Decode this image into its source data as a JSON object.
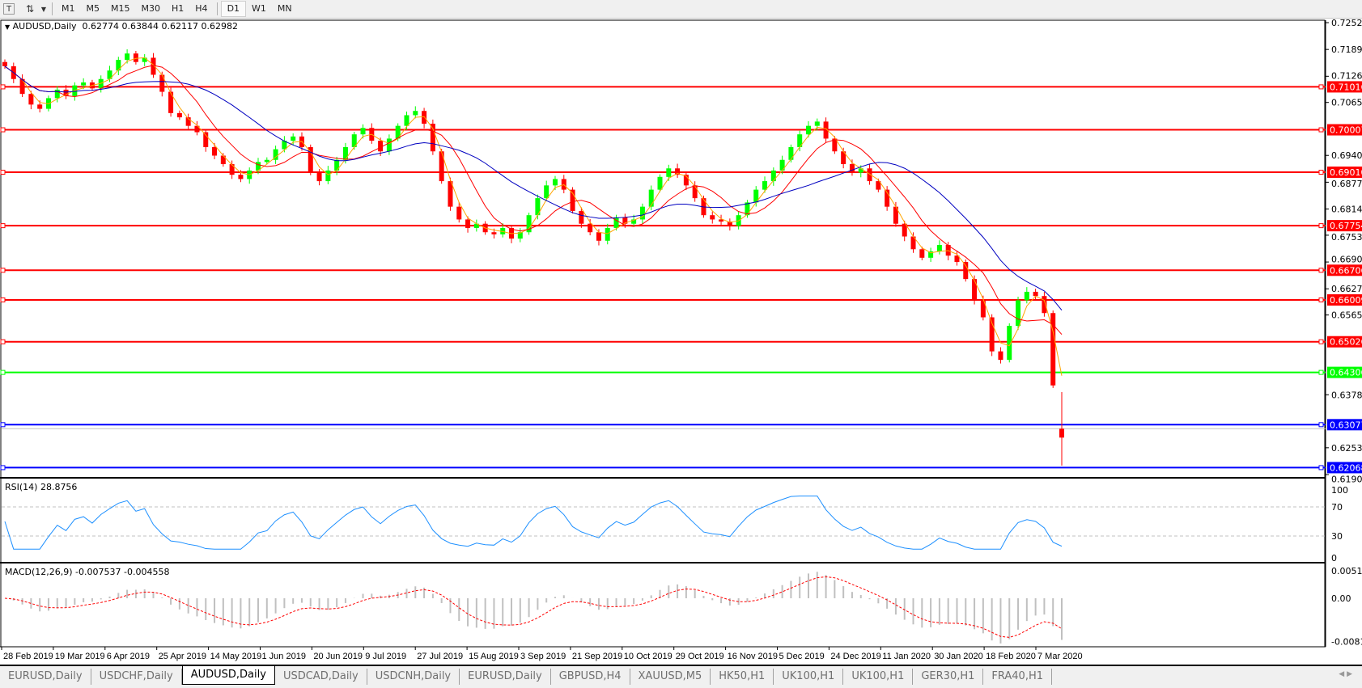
{
  "toolbar": {
    "icons": [
      "text-tool-icon",
      "line-tools-icon"
    ],
    "timeframes": [
      "M1",
      "M5",
      "M15",
      "M30",
      "H1",
      "H4",
      "D1",
      "W1",
      "MN"
    ],
    "active_timeframe": "D1"
  },
  "chart": {
    "symbol_label": "AUDUSD,Daily",
    "ohlc_text": "0.62774 0.63844 0.62117 0.62982",
    "rsi_label": "RSI(14) 28.8756",
    "macd_label": "MACD(12,26,9) -0.007537 -0.004558"
  },
  "tabs": [
    {
      "label": "EURUSD,Daily",
      "active": false
    },
    {
      "label": "USDCHF,Daily",
      "active": false
    },
    {
      "label": "AUDUSD,Daily",
      "active": true
    },
    {
      "label": "USDCAD,Daily",
      "active": false
    },
    {
      "label": "USDCNH,Daily",
      "active": false
    },
    {
      "label": "EURUSD,Daily",
      "active": false
    },
    {
      "label": "GBPUSD,H4",
      "active": false
    },
    {
      "label": "XAUUSD,M5",
      "active": false
    },
    {
      "label": "HK50,H1",
      "active": false
    },
    {
      "label": "UK100,H1",
      "active": false
    },
    {
      "label": "UK100,H1",
      "active": false
    },
    {
      "label": "GER30,H1",
      "active": false
    },
    {
      "label": "FRA40,H1",
      "active": false
    }
  ],
  "colors": {
    "bull": "#00ff00",
    "bear": "#ff0000",
    "ma_fast": "#ffa500",
    "ma_mid": "#ff0000",
    "ma_slow": "#0000c0",
    "rsi": "#1e90ff",
    "macd_hist": "#c0c0c0",
    "macd_signal": "#ff0000"
  },
  "chart_data": {
    "type": "candlestick",
    "symbol": "AUDUSD",
    "timeframe": "Daily",
    "last_candle": {
      "open": 0.62774,
      "high": 0.63844,
      "low": 0.62117,
      "close": 0.62982
    },
    "closes": [
      0.715,
      0.712,
      0.7085,
      0.706,
      0.705,
      0.7075,
      0.7095,
      0.708,
      0.7105,
      0.7112,
      0.7098,
      0.712,
      0.714,
      0.7165,
      0.718,
      0.716,
      0.717,
      0.713,
      0.709,
      0.704,
      0.703,
      0.701,
      0.6995,
      0.696,
      0.694,
      0.692,
      0.6895,
      0.6885,
      0.6905,
      0.6925,
      0.693,
      0.6955,
      0.6975,
      0.6985,
      0.696,
      0.69,
      0.688,
      0.6905,
      0.693,
      0.696,
      0.699,
      0.7005,
      0.6975,
      0.695,
      0.698,
      0.701,
      0.7035,
      0.7045,
      0.7015,
      0.695,
      0.688,
      0.682,
      0.679,
      0.677,
      0.678,
      0.676,
      0.6755,
      0.677,
      0.6745,
      0.676,
      0.68,
      0.684,
      0.687,
      0.6885,
      0.686,
      0.681,
      0.678,
      0.676,
      0.674,
      0.677,
      0.6795,
      0.678,
      0.679,
      0.682,
      0.686,
      0.689,
      0.691,
      0.6895,
      0.687,
      0.684,
      0.68,
      0.679,
      0.6785,
      0.6775,
      0.68,
      0.683,
      0.686,
      0.688,
      0.6905,
      0.693,
      0.696,
      0.699,
      0.701,
      0.702,
      0.698,
      0.695,
      0.692,
      0.69,
      0.691,
      0.688,
      0.686,
      0.682,
      0.678,
      0.675,
      0.672,
      0.67,
      0.6715,
      0.673,
      0.6705,
      0.669,
      0.665,
      0.66,
      0.656,
      0.648,
      0.646,
      0.654,
      0.66,
      0.662,
      0.661,
      0.657,
      0.64,
      0.62982
    ],
    "price_range": [
      0.61905,
      0.72525
    ],
    "price_ticks": [
      "0.72525",
      "0.71895",
      "0.71265",
      "0.70650",
      "0.69405",
      "0.68775",
      "0.68145",
      "0.67530",
      "0.66900",
      "0.66270",
      "0.65655",
      "0.63780",
      "0.62535",
      "0.61905"
    ],
    "levels": [
      {
        "value": "0.71016",
        "color": "#ff0000"
      },
      {
        "value": "0.70007",
        "color": "#ff0000"
      },
      {
        "value": "0.69010",
        "color": "#ff0000"
      },
      {
        "value": "0.67754",
        "color": "#ff0000"
      },
      {
        "value": "0.66706",
        "color": "#ff0000"
      },
      {
        "value": "0.66009",
        "color": "#ff0000"
      },
      {
        "value": "0.65026",
        "color": "#ff0000"
      },
      {
        "value": "0.64306",
        "color": "#00ff00"
      },
      {
        "value": "0.63077",
        "color": "#0000ff"
      },
      {
        "value": "0.62068",
        "color": "#0000ff"
      }
    ],
    "bid": "0.62982",
    "rsi_ticks": [
      "100",
      "70",
      "30",
      "0"
    ],
    "rsi_levels": [
      70,
      30
    ],
    "macd_ticks": [
      "0.00517",
      "0.00",
      "-0.008142"
    ],
    "x_ticks": [
      "28 Feb 2019",
      "19 Mar 2019",
      "6 Apr 2019",
      "25 Apr 2019",
      "14 May 2019",
      "1 Jun 2019",
      "20 Jun 2019",
      "9 Jul 2019",
      "27 Jul 2019",
      "15 Aug 2019",
      "3 Sep 2019",
      "21 Sep 2019",
      "10 Oct 2019",
      "29 Oct 2019",
      "16 Nov 2019",
      "5 Dec 2019",
      "24 Dec 2019",
      "11 Jan 2020",
      "30 Jan 2020",
      "18 Feb 2020",
      "7 Mar 2020"
    ]
  }
}
